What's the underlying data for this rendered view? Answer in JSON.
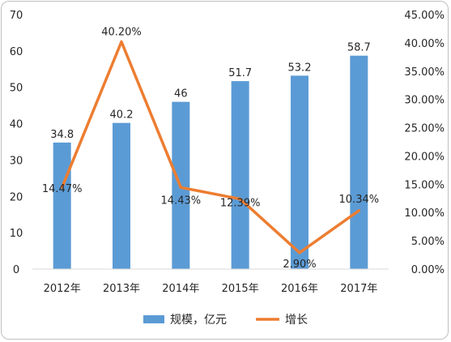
{
  "chart_data": {
    "type": "bar",
    "categories": [
      "2012年",
      "2013年",
      "2014年",
      "2015年",
      "2016年",
      "2017年"
    ],
    "series": [
      {
        "name": "规模，亿元",
        "type": "bar",
        "axis": "left",
        "values": [
          34.8,
          40.2,
          46,
          51.7,
          53.2,
          58.7
        ],
        "labels": [
          "34.8",
          "40.2",
          "46",
          "51.7",
          "53.2",
          "58.7"
        ]
      },
      {
        "name": "增长",
        "type": "line",
        "axis": "right",
        "values": [
          14.47,
          40.2,
          14.43,
          12.39,
          2.9,
          10.34
        ],
        "labels": [
          "14.47%",
          "40.20%",
          "14.43%",
          "12.39%",
          "2.90%",
          "10.34%"
        ]
      }
    ],
    "y_left": {
      "ylim": [
        0,
        70
      ],
      "ticks": [
        "0",
        "10",
        "20",
        "30",
        "40",
        "50",
        "60",
        "70"
      ]
    },
    "y_right": {
      "ylim": [
        0,
        45
      ],
      "ticks": [
        "0.00%",
        "5.00%",
        "10.00%",
        "15.00%",
        "20.00%",
        "25.00%",
        "30.00%",
        "35.00%",
        "40.00%",
        "45.00%"
      ]
    },
    "legend_position": "bottom",
    "grid": false,
    "colors": {
      "bar": "#5b9bd5",
      "line": "#ed7d31",
      "axis": "#d9d9d9"
    }
  }
}
